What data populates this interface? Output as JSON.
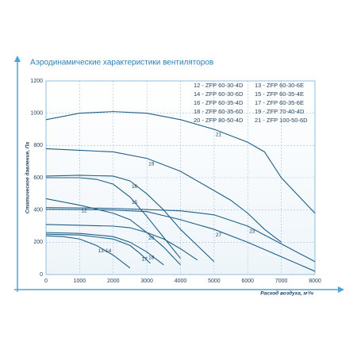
{
  "chart_data": {
    "type": "line",
    "title": "Аэродинамические характеристики вентиляторов",
    "xlabel": "Расход воздуха, м³/ч",
    "ylabel": "Статическое давление, Па",
    "xlim": [
      0,
      8000
    ],
    "ylim": [
      0,
      1200
    ],
    "xticks": [
      0,
      1000,
      2000,
      3000,
      4000,
      5000,
      6000,
      7000,
      8000
    ],
    "yticks": [
      0,
      200,
      400,
      600,
      800,
      1000,
      1200
    ],
    "grid": true,
    "legend_entries": [
      "12 - ZFP 60-30-4D",
      "13 - ZFP 60-30-6E",
      "14 - ZFP 60-30-6D",
      "15 - ZFP 60-35-4E",
      "16 - ZFP 60-35-4D",
      "17 - ZFP 60-35-6E",
      "18 - ZFP 60-35-6D",
      "19 - ZFP 70-40-4D",
      "20 - ZFP 80-50-4D",
      "21 - ZFP 100-50-6D"
    ],
    "series": [
      {
        "name": "21",
        "color": "#1f5f86",
        "x": [
          0,
          1000,
          2000,
          3000,
          4000,
          5000,
          6000,
          6500,
          7000,
          8000
        ],
        "values": [
          960,
          1000,
          1010,
          1000,
          960,
          900,
          820,
          760,
          600,
          380
        ]
      },
      {
        "name": "19",
        "color": "#1f5f86",
        "x": [
          0,
          1000,
          2000,
          3000,
          4000,
          5000,
          5500,
          6000,
          6500,
          7000
        ],
        "values": [
          780,
          770,
          760,
          720,
          640,
          520,
          460,
          380,
          280,
          200
        ]
      },
      {
        "name": "16",
        "color": "#1f5f86",
        "x": [
          0,
          1000,
          2000,
          2500,
          3000,
          3500,
          4000,
          4500,
          5000
        ],
        "values": [
          610,
          615,
          610,
          580,
          500,
          400,
          280,
          180,
          80
        ]
      },
      {
        "name": "15",
        "color": "#1f5f86",
        "x": [
          0,
          1000,
          1500,
          2000,
          2500,
          3000,
          3500,
          4000
        ],
        "values": [
          600,
          600,
          590,
          560,
          480,
          360,
          230,
          100
        ]
      },
      {
        "name": "12",
        "color": "#1f5f86",
        "x": [
          0,
          1000,
          2000,
          2500,
          3000,
          3500,
          4000
        ],
        "values": [
          470,
          430,
          380,
          340,
          260,
          170,
          60
        ]
      },
      {
        "name": "23",
        "color": "#1f5f86",
        "x": [
          0,
          2000,
          4000,
          5000,
          6000,
          7000,
          8000
        ],
        "values": [
          415,
          410,
          395,
          370,
          300,
          190,
          80
        ]
      },
      {
        "name": "27",
        "color": "#1f5f86",
        "x": [
          0,
          2000,
          3000,
          4000,
          5000,
          6000,
          7000,
          8000
        ],
        "values": [
          405,
          400,
          390,
          340,
          280,
          200,
          110,
          20
        ]
      },
      {
        "name": "20",
        "color": "#1f5f86",
        "x": [
          0,
          1000,
          2000,
          2500,
          3000,
          3500,
          4000,
          4500
        ],
        "values": [
          310,
          305,
          300,
          290,
          260,
          220,
          160,
          90
        ]
      },
      {
        "name": "18",
        "color": "#1f5f86",
        "x": [
          0,
          1000,
          2000,
          2500,
          3000,
          3500
        ],
        "values": [
          260,
          255,
          235,
          200,
          140,
          60
        ]
      },
      {
        "name": "17",
        "color": "#1f5f86",
        "x": [
          0,
          1000,
          2000,
          2500,
          2800,
          3100
        ],
        "values": [
          250,
          245,
          220,
          180,
          130,
          70
        ]
      },
      {
        "name": "13-14",
        "color": "#1f5f86",
        "x": [
          0,
          500,
          1000,
          1500,
          2000,
          2500
        ],
        "values": [
          240,
          235,
          220,
          180,
          120,
          40
        ]
      }
    ]
  }
}
